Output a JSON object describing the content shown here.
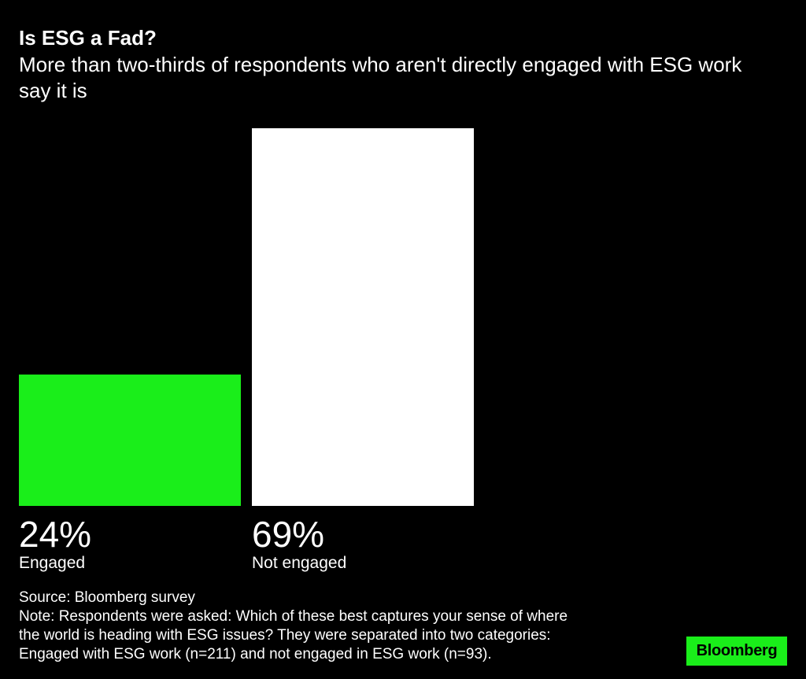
{
  "chart_data": {
    "type": "bar",
    "title": "Is ESG a Fad?",
    "subtitle": "More than two-thirds of respondents who aren't directly engaged with ESG work say it is",
    "categories": [
      "Engaged",
      "Not engaged"
    ],
    "values": [
      24,
      69
    ],
    "value_labels": [
      "24%",
      "69%"
    ],
    "unit": "%",
    "ylim": [
      0,
      69
    ],
    "colors": [
      "#1aee1a",
      "#ffffff"
    ],
    "grid": false,
    "legend": "none",
    "xlabel": "",
    "ylabel": ""
  },
  "footer": {
    "source": "Source: Bloomberg survey",
    "note_lines": [
      "Note: Respondents were asked: Which of these best captures your sense of where",
      "the world is heading with ESG issues? They were separated into two categories:",
      "Engaged with ESG work (n=211) and not engaged in ESG work (n=93)."
    ]
  },
  "logo": {
    "text": "Bloomberg",
    "background": "#1aee1a",
    "color": "#000000"
  },
  "background_color": "#000000"
}
